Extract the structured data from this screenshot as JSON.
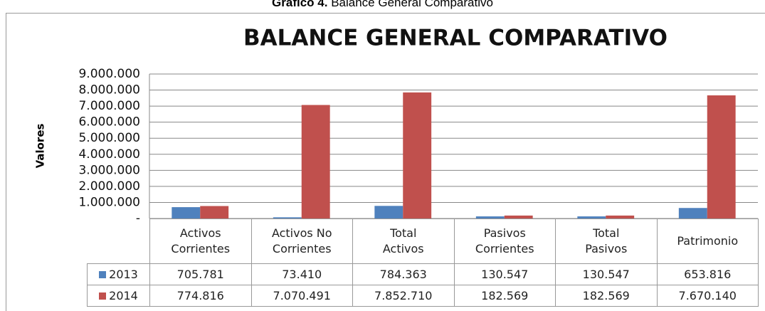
{
  "caption_label": "Gráfico 4.",
  "caption": "Balance General Comparativo",
  "chart_data": {
    "type": "bar",
    "title": "BALANCE GENERAL COMPARATIVO",
    "ylabel": "Valores",
    "categories": [
      "Activos\nCorrientes",
      "Activos No\nCorrientes",
      "Total\nActivos",
      "Pasivos\nCorrientes",
      "Total\nPasivos",
      "Patrimonio"
    ],
    "series": [
      {
        "name": "2013",
        "color": "#4f81bd",
        "values": [
          705781,
          73410,
          784363,
          130547,
          130547,
          653816
        ],
        "value_labels": [
          "705.781",
          "73.410",
          "784.363",
          "130.547",
          "130.547",
          "653.816"
        ]
      },
      {
        "name": "2014",
        "color": "#c0504d",
        "values": [
          774816,
          7070491,
          7852710,
          182569,
          182569,
          7670140
        ],
        "value_labels": [
          "774.816",
          "7.070.491",
          "7.852.710",
          "182.569",
          "182.569",
          "7.670.140"
        ]
      }
    ],
    "ylim": [
      0,
      9000000
    ],
    "yticks": [
      {
        "value": 0,
        "label": "-"
      },
      {
        "value": 1000000,
        "label": "1.000.000"
      },
      {
        "value": 2000000,
        "label": "2.000.000"
      },
      {
        "value": 3000000,
        "label": "3.000.000"
      },
      {
        "value": 4000000,
        "label": "4.000.000"
      },
      {
        "value": 5000000,
        "label": "5.000.000"
      },
      {
        "value": 6000000,
        "label": "6.000.000"
      },
      {
        "value": 7000000,
        "label": "7.000.000"
      },
      {
        "value": 8000000,
        "label": "8.000.000"
      },
      {
        "value": 9000000,
        "label": "9.000.000"
      }
    ],
    "grid": true
  }
}
